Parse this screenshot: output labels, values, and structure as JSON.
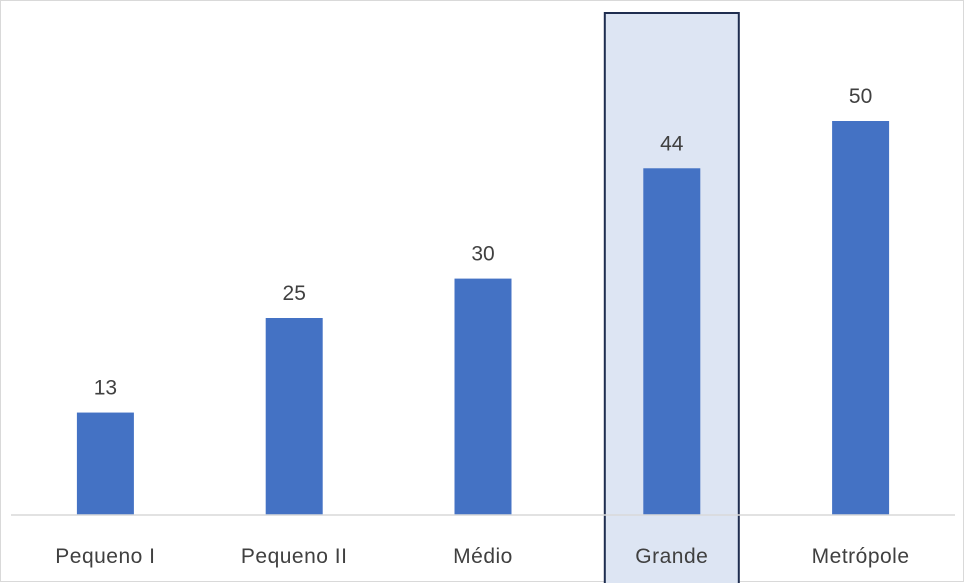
{
  "chart_data": {
    "type": "bar",
    "title": "",
    "xlabel": "",
    "ylabel": "",
    "categories": [
      "Pequeno I",
      "Pequeno II",
      "Médio",
      "Grande",
      "Metrópole"
    ],
    "values": [
      13,
      25,
      30,
      44,
      50
    ],
    "ylim": [
      0,
      55
    ],
    "grid": false,
    "legend": "none",
    "highlighted_category": "Grande",
    "colors": {
      "bar": "#4472c4",
      "highlight_fill": "#dde5f3",
      "highlight_border": "#1f2d4f",
      "axis": "#d9d9d9",
      "text": "#404040"
    }
  }
}
